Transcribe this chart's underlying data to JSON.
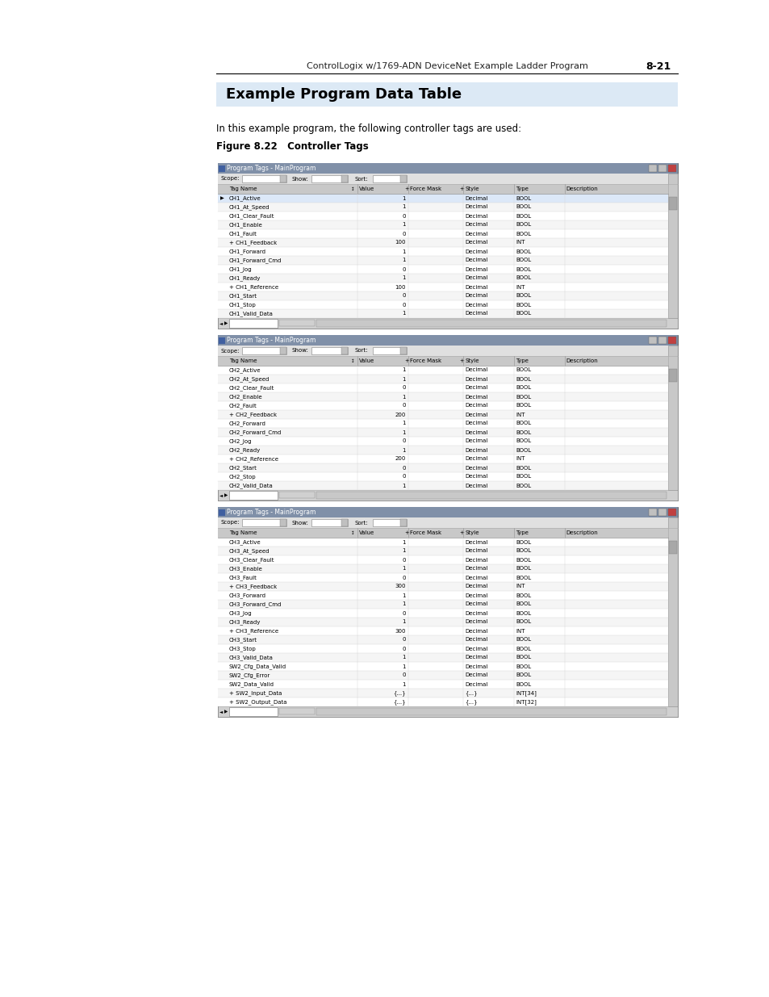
{
  "page_header_left": "ControlLogix w/1769-ADN DeviceNet Example Ladder Program",
  "page_header_right": "8-21",
  "section_title": "Example Program Data Table",
  "section_intro": "In this example program, the following controller tags are used:",
  "figure_label": "Figure 8.22   Controller Tags",
  "window_title": "Program Tags - MainProgram",
  "col_headers": [
    "Tag Name",
    "Value",
    "Force Mask",
    "Style",
    "Type",
    "Description"
  ],
  "table1_rows": [
    [
      "CH1_Active",
      "1",
      "",
      "Decimal",
      "BOOL",
      ""
    ],
    [
      "CH1_At_Speed",
      "1",
      "",
      "Decimal",
      "BOOL",
      ""
    ],
    [
      "CH1_Clear_Fault",
      "0",
      "",
      "Decimal",
      "BOOL",
      ""
    ],
    [
      "CH1_Enable",
      "1",
      "",
      "Decimal",
      "BOOL",
      ""
    ],
    [
      "CH1_Fault",
      "0",
      "",
      "Decimal",
      "BOOL",
      ""
    ],
    [
      "+ CH1_Feedback",
      "100",
      "",
      "Decimal",
      "INT",
      ""
    ],
    [
      "CH1_Forward",
      "1",
      "",
      "Decimal",
      "BOOL",
      ""
    ],
    [
      "CH1_Forward_Cmd",
      "1",
      "",
      "Decimal",
      "BOOL",
      ""
    ],
    [
      "CH1_Jog",
      "0",
      "",
      "Decimal",
      "BOOL",
      ""
    ],
    [
      "CH1_Ready",
      "1",
      "",
      "Decimal",
      "BOOL",
      ""
    ],
    [
      "+ CH1_Reference",
      "100",
      "",
      "Decimal",
      "INT",
      ""
    ],
    [
      "CH1_Start",
      "0",
      "",
      "Decimal",
      "BOOL",
      ""
    ],
    [
      "CH1_Stop",
      "0",
      "",
      "Decimal",
      "BOOL",
      ""
    ],
    [
      "CH1_Valid_Data",
      "1",
      "",
      "Decimal",
      "BOOL",
      ""
    ]
  ],
  "table2_rows": [
    [
      "CH2_Active",
      "1",
      "",
      "Decimal",
      "BOOL",
      ""
    ],
    [
      "CH2_At_Speed",
      "1",
      "",
      "Decimal",
      "BOOL",
      ""
    ],
    [
      "CH2_Clear_Fault",
      "0",
      "",
      "Decimal",
      "BOOL",
      ""
    ],
    [
      "CH2_Enable",
      "1",
      "",
      "Decimal",
      "BOOL",
      ""
    ],
    [
      "CH2_Fault",
      "0",
      "",
      "Decimal",
      "BOOL",
      ""
    ],
    [
      "+ CH2_Feedback",
      "200",
      "",
      "Decimal",
      "INT",
      ""
    ],
    [
      "CH2_Forward",
      "1",
      "",
      "Decimal",
      "BOOL",
      ""
    ],
    [
      "CH2_Forward_Cmd",
      "1",
      "",
      "Decimal",
      "BOOL",
      ""
    ],
    [
      "CH2_Jog",
      "0",
      "",
      "Decimal",
      "BOOL",
      ""
    ],
    [
      "CH2_Ready",
      "1",
      "",
      "Decimal",
      "BOOL",
      ""
    ],
    [
      "+ CH2_Reference",
      "200",
      "",
      "Decimal",
      "INT",
      ""
    ],
    [
      "CH2_Start",
      "0",
      "",
      "Decimal",
      "BOOL",
      ""
    ],
    [
      "CH2_Stop",
      "0",
      "",
      "Decimal",
      "BOOL",
      ""
    ],
    [
      "CH2_Valid_Data",
      "1",
      "",
      "Decimal",
      "BOOL",
      ""
    ]
  ],
  "table3_rows": [
    [
      "CH3_Active",
      "1",
      "",
      "Decimal",
      "BOOL",
      ""
    ],
    [
      "CH3_At_Speed",
      "1",
      "",
      "Decimal",
      "BOOL",
      ""
    ],
    [
      "CH3_Clear_Fault",
      "0",
      "",
      "Decimal",
      "BOOL",
      ""
    ],
    [
      "CH3_Enable",
      "1",
      "",
      "Decimal",
      "BOOL",
      ""
    ],
    [
      "CH3_Fault",
      "0",
      "",
      "Decimal",
      "BOOL",
      ""
    ],
    [
      "+ CH3_Feedback",
      "300",
      "",
      "Decimal",
      "INT",
      ""
    ],
    [
      "CH3_Forward",
      "1",
      "",
      "Decimal",
      "BOOL",
      ""
    ],
    [
      "CH3_Forward_Cmd",
      "1",
      "",
      "Decimal",
      "BOOL",
      ""
    ],
    [
      "CH3_Jog",
      "0",
      "",
      "Decimal",
      "BOOL",
      ""
    ],
    [
      "CH3_Ready",
      "1",
      "",
      "Decimal",
      "BOOL",
      ""
    ],
    [
      "+ CH3_Reference",
      "300",
      "",
      "Decimal",
      "INT",
      ""
    ],
    [
      "CH3_Start",
      "0",
      "",
      "Decimal",
      "BOOL",
      ""
    ],
    [
      "CH3_Stop",
      "0",
      "",
      "Decimal",
      "BOOL",
      ""
    ],
    [
      "CH3_Valid_Data",
      "1",
      "",
      "Decimal",
      "BOOL",
      ""
    ],
    [
      "SW2_Cfg_Data_Valid",
      "1",
      "",
      "Decimal",
      "BOOL",
      ""
    ],
    [
      "SW2_Cfg_Error",
      "0",
      "",
      "Decimal",
      "BOOL",
      ""
    ],
    [
      "SW2_Data_Valid",
      "1",
      "",
      "Decimal",
      "BOOL",
      ""
    ],
    [
      "+ SW2_Input_Data",
      "{...}",
      "",
      "{...}",
      "INT[34]",
      ""
    ],
    [
      "+ SW2_Output_Data",
      "{...}",
      "",
      "{...}",
      "INT[32]",
      ""
    ]
  ],
  "page_bg": "#ffffff",
  "section_title_bg": "#dce9f5",
  "win_title_bg": "#8090a8",
  "toolbar_bg": "#e0e0e0",
  "col_header_bg": "#c8c8c8",
  "row_bg_even": "#ffffff",
  "row_bg_odd": "#f5f5f5",
  "row_first_bg": "#dce8f8",
  "bottom_bar_bg": "#d0d0d0",
  "scrollbar_bg": "#c8c8c8",
  "win_border": "#606060"
}
